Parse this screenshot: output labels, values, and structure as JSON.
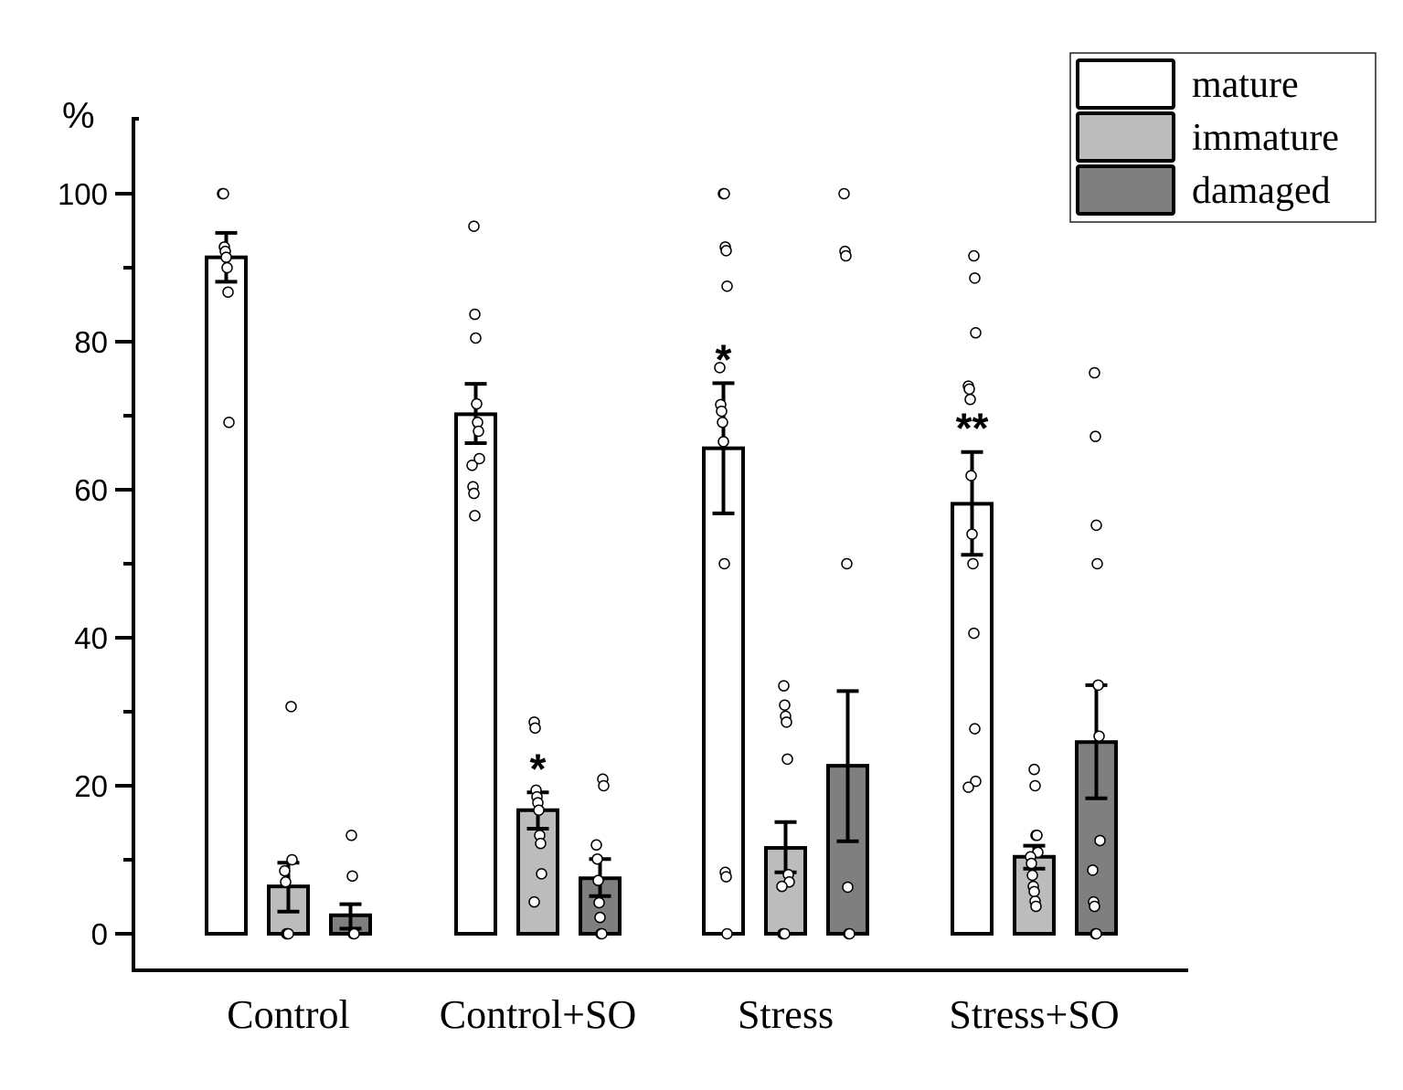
{
  "chart_data": {
    "type": "bar",
    "title": "",
    "xlabel": "",
    "ylabel": "%",
    "ylim": [
      0,
      110
    ],
    "yticks": [
      0,
      20,
      40,
      60,
      80,
      100
    ],
    "yticks_minor": [
      10,
      30,
      50,
      70,
      90
    ],
    "grid": false,
    "legend_position": "top-right",
    "categories": [
      "Control",
      "Control+SO",
      "Stress",
      "Stress+SO"
    ],
    "series": [
      {
        "name": "mature",
        "color": "#ffffff",
        "values": [
          91.4,
          70.2,
          65.6,
          58.1
        ],
        "error_upper": [
          94.7,
          74.3,
          74.4,
          65.1
        ],
        "error_lower": [
          88.1,
          66.3,
          56.8,
          51.2
        ],
        "significance": [
          "",
          "",
          "*",
          "**"
        ],
        "points": [
          [
            100,
            100,
            92.8,
            92.2,
            91.4,
            90.0,
            86.7,
            69.1
          ],
          [
            95.6,
            83.7,
            80.5,
            71.6,
            69.1,
            67.9,
            64.2,
            63.3,
            60.4,
            59.5,
            56.5
          ],
          [
            100,
            100,
            92.8,
            92.3,
            87.5,
            76.5,
            71.5,
            70.6,
            69.1,
            66.5,
            50.0,
            8.3,
            7.7,
            0
          ],
          [
            91.6,
            88.6,
            81.2,
            74.0,
            73.6,
            72.2,
            61.9,
            54.0,
            50.0,
            40.6,
            27.7,
            20.6,
            19.8
          ]
        ]
      },
      {
        "name": "immature",
        "color": "#bcbcbc",
        "values": [
          6.4,
          16.7,
          11.6,
          10.4
        ],
        "error_upper": [
          9.6,
          19.1,
          15.1,
          11.9
        ],
        "error_lower": [
          3.0,
          14.2,
          8.3,
          8.8
        ],
        "significance": [
          "",
          "*",
          "",
          ""
        ],
        "points": [
          [
            30.7,
            10.0,
            8.5,
            7.0,
            0,
            0,
            0
          ],
          [
            28.6,
            27.8,
            19.4,
            18.5,
            17.7,
            16.7,
            13.3,
            12.2,
            8.1,
            4.3
          ],
          [
            33.5,
            30.9,
            29.4,
            28.6,
            23.6,
            8.0,
            7.0,
            6.4,
            0,
            0,
            0
          ],
          [
            22.2,
            20.0,
            13.3,
            13.3,
            11.0,
            10.4,
            9.5,
            7.9,
            6.4,
            5.7,
            4.4,
            3.7
          ]
        ]
      },
      {
        "name": "damaged",
        "color": "#7f7f7f",
        "values": [
          2.5,
          7.5,
          22.7,
          25.9
        ],
        "error_upper": [
          4.0,
          10.1,
          32.8,
          33.6
        ],
        "error_lower": [
          0.7,
          5.1,
          12.5,
          18.3
        ],
        "significance": [
          "",
          "",
          "",
          ""
        ],
        "points": [
          [
            13.3,
            7.8,
            0,
            0
          ],
          [
            20.9,
            20.0,
            12.0,
            10.1,
            7.2,
            4.2,
            2.2,
            0,
            0
          ],
          [
            100,
            92.2,
            91.6,
            50.0,
            6.3,
            0,
            0
          ],
          [
            75.8,
            67.2,
            55.2,
            50.0,
            33.6,
            26.7,
            12.6,
            8.6,
            4.3,
            3.7,
            0,
            0
          ]
        ]
      }
    ]
  }
}
